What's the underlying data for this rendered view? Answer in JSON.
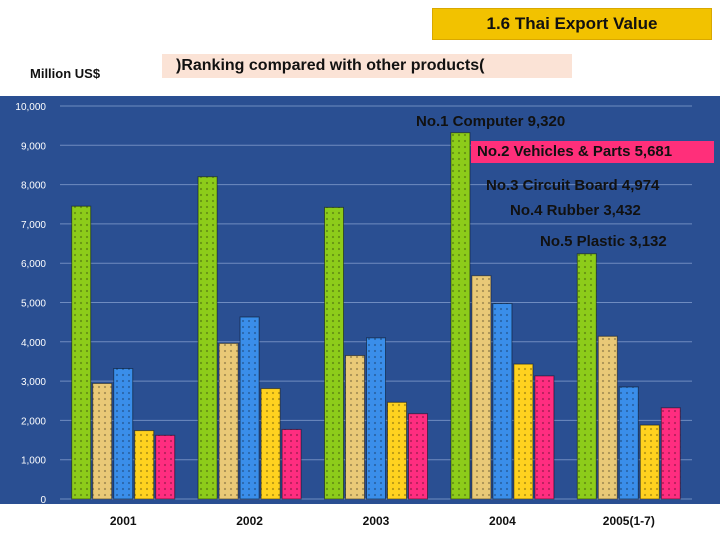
{
  "header": {
    "title": "1.6 Thai Export Value",
    "unit": "Million US$",
    "subtitle": ")Ranking compared with other products("
  },
  "annotations": [
    "No.1 Computer 9,320",
    "No.2 Vehicles & Parts 5,681",
    "No.3 Circuit Board 4,974",
    "No.4 Rubber 3,432",
    "No.5 Plastic 3,132"
  ],
  "chart_data": {
    "type": "bar",
    "title": "1.6 Thai Export Value",
    "ylabel": "Million US$",
    "xlabel": "",
    "categories": [
      "2001",
      "2002",
      "2003",
      "2004",
      "2005(1-7)"
    ],
    "ylim": [
      0,
      10000
    ],
    "yticks": [
      "0",
      "1,000",
      "2,000",
      "3,000",
      "4,000",
      "5,000",
      "6,000",
      "7,000",
      "8,000",
      "9,000",
      "10,000"
    ],
    "grid": true,
    "series": [
      {
        "color": "#8dcc1a",
        "values": [
          7450,
          8200,
          7420,
          9320,
          6240
        ]
      },
      {
        "color": "#e9c977",
        "values": [
          2940,
          3960,
          3650,
          5681,
          4140
        ]
      },
      {
        "color": "#3a8eea",
        "values": [
          3320,
          4630,
          4100,
          4974,
          2850
        ]
      },
      {
        "color": "#ffd21f",
        "values": [
          1740,
          2810,
          2460,
          3432,
          1880
        ]
      },
      {
        "color": "#ff2d80",
        "values": [
          1620,
          1770,
          2170,
          3132,
          2320
        ]
      }
    ],
    "colors": {
      "plot_background": "#2a4f92",
      "gridline": "#6f8cc0",
      "tick_label": "#ffffff"
    }
  }
}
